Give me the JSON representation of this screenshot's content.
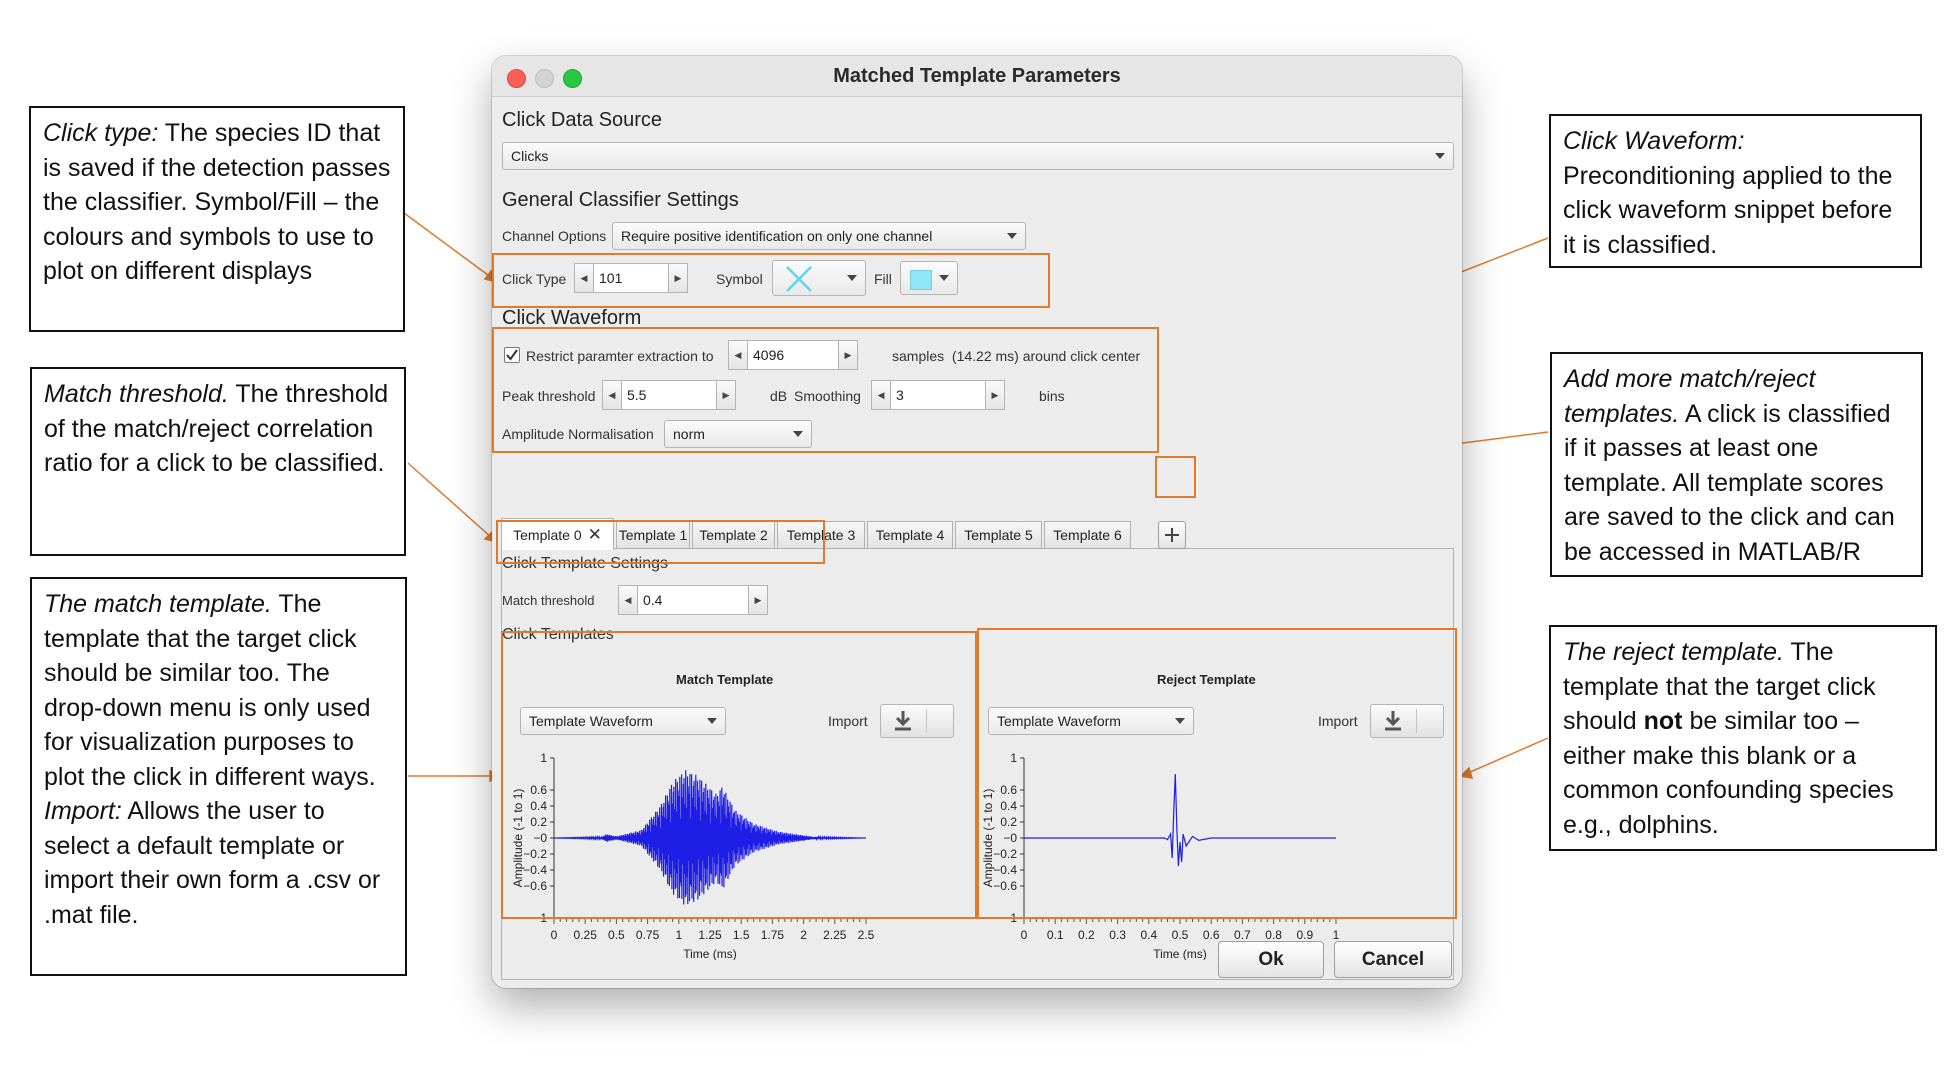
{
  "window": {
    "title": "Matched Template Parameters",
    "traffic_colors": [
      "#fe5f57",
      "#d3d3d3",
      "#28c840"
    ]
  },
  "click_data_source": {
    "heading": "Click Data Source",
    "selected": "Clicks"
  },
  "general": {
    "heading": "General Classifier Settings",
    "channel_label": "Channel Options",
    "channel_selected": "Require positive identification on only one channel",
    "click_type_label": "Click Type",
    "click_type_value": "101",
    "symbol_label": "Symbol",
    "symbol_icon": "x-cross-icon",
    "symbol_color": "#5cd6f0",
    "fill_label": "Fill",
    "fill_color": "#8de7f7"
  },
  "waveform": {
    "heading": "Click Waveform",
    "restrict_label": "Restrict paramter extraction to",
    "restrict_checked": true,
    "samples_value": "4096",
    "samples_suffix": "samples  (14.22 ms) around click center",
    "peak_label": "Peak threshold",
    "peak_value": "5.5",
    "peak_unit": "dB",
    "smoothing_label": "Smoothing",
    "smoothing_value": "3",
    "smoothing_unit": "bins",
    "norm_label": "Amplitude Normalisation",
    "norm_selected": "norm"
  },
  "tabs": [
    {
      "label": "Template 0",
      "active": true
    },
    {
      "label": "Template 1"
    },
    {
      "label": "Template 2"
    },
    {
      "label": "Template 3"
    },
    {
      "label": "Template 4"
    },
    {
      "label": "Template 5"
    },
    {
      "label": "Template 6"
    }
  ],
  "template_settings": {
    "heading": "Click Template Settings",
    "match_label": "Match threshold",
    "match_value": "0.4",
    "templates_heading": "Click Templates"
  },
  "match_panel": {
    "title": "Match Template",
    "mode": "Template Waveform",
    "import_label": "Import"
  },
  "reject_panel": {
    "title": "Reject Template",
    "mode": "Template Waveform",
    "import_label": "Import"
  },
  "buttons": {
    "ok": "Ok",
    "cancel": "Cancel"
  },
  "annotations": {
    "click_type": {
      "em": "Click type:",
      "text": " The species ID that is saved if the detection passes the classifier. Symbol/Fill – the colours and symbols to use to plot on different displays"
    },
    "match_threshold": {
      "em": "Match threshold.",
      "text": " The threshold of the match/reject correlation ratio for a click to be classified."
    },
    "match_template": {
      "em": "The match template.",
      "text": " The template that the target click should be similar too. The drop-down menu is only used for visualization purposes to plot the click in different ways.",
      "em2": "Import:",
      "text2": " Allows the user to select a default template or import their own form a .csv or .mat file."
    },
    "click_waveform": {
      "em": "Click Waveform:",
      "text": " Preconditioning applied to the click waveform snippet before it is classified."
    },
    "add_more": {
      "em": "Add more match/reject templates.",
      "text": " A click is classified if it passes at least one template. All template scores are saved to the click and can be accessed in MATLAB/R"
    },
    "reject_template": {
      "em": "The reject template.",
      "text_before": " The template that the target click should ",
      "bold": "not",
      "text_after": " be similar too – either make this blank or a common confounding species e.g., dolphins."
    }
  },
  "chart_data": [
    {
      "type": "line",
      "title": "Match Template",
      "xlabel": "Time (ms)",
      "ylabel": "Amplitude (-1 to 1)",
      "xlim": [
        0,
        2.5
      ],
      "ylim": [
        -1,
        1
      ],
      "x_ticks": [
        "0",
        "0.25",
        "0.5",
        "0.75",
        "1",
        "1.25",
        "1.5",
        "1.75",
        "2",
        "2.25",
        "2.5"
      ],
      "y_ticks": [
        "1",
        "0.6",
        "0.4",
        "0.2",
        "−0",
        "−0.2",
        "−0.4",
        "−0.6",
        "−1"
      ],
      "series": [
        {
          "color": "#1e1ee6",
          "envelope": [
            {
              "x": 0,
              "amp": 0.0
            },
            {
              "x": 0.38,
              "amp": 0.01
            },
            {
              "x": 0.42,
              "amp": 0.05
            },
            {
              "x": 0.5,
              "amp": 0.02
            },
            {
              "x": 0.7,
              "amp": 0.1
            },
            {
              "x": 0.85,
              "amp": 0.4
            },
            {
              "x": 0.95,
              "amp": 0.7
            },
            {
              "x": 1.05,
              "amp": 0.85
            },
            {
              "x": 1.15,
              "amp": 0.78
            },
            {
              "x": 1.3,
              "amp": 0.55
            },
            {
              "x": 1.35,
              "amp": 0.65
            },
            {
              "x": 1.45,
              "amp": 0.35
            },
            {
              "x": 1.6,
              "amp": 0.18
            },
            {
              "x": 1.8,
              "amp": 0.08
            },
            {
              "x": 2.1,
              "amp": 0.01
            },
            {
              "x": 2.5,
              "amp": 0.0
            }
          ]
        }
      ]
    },
    {
      "type": "line",
      "title": "Reject Template",
      "xlabel": "Time (ms)",
      "ylabel": "Amplitude (-1 to 1)",
      "xlim": [
        0,
        1
      ],
      "ylim": [
        -1,
        1
      ],
      "x_ticks": [
        "0",
        "0.1",
        "0.2",
        "0.3",
        "0.4",
        "0.5",
        "0.6",
        "0.7",
        "0.8",
        "0.9",
        "1"
      ],
      "y_ticks": [
        "1",
        "0.6",
        "0.4",
        "0.2",
        "−0",
        "−0.2",
        "−0.4",
        "−0.6",
        "−1"
      ],
      "series": [
        {
          "color": "#1e1ee6",
          "points": [
            {
              "x": 0,
              "y": 0
            },
            {
              "x": 0.45,
              "y": 0
            },
            {
              "x": 0.46,
              "y": -0.02
            },
            {
              "x": 0.47,
              "y": 0.05
            },
            {
              "x": 0.475,
              "y": -0.25
            },
            {
              "x": 0.48,
              "y": 0.35
            },
            {
              "x": 0.485,
              "y": 0.8
            },
            {
              "x": 0.49,
              "y": 0.1
            },
            {
              "x": 0.495,
              "y": -0.35
            },
            {
              "x": 0.5,
              "y": -0.05
            },
            {
              "x": 0.505,
              "y": -0.3
            },
            {
              "x": 0.51,
              "y": 0.05
            },
            {
              "x": 0.52,
              "y": -0.1
            },
            {
              "x": 0.54,
              "y": 0.02
            },
            {
              "x": 0.56,
              "y": -0.03
            },
            {
              "x": 0.6,
              "y": 0
            },
            {
              "x": 1,
              "y": 0
            }
          ]
        }
      ]
    }
  ]
}
